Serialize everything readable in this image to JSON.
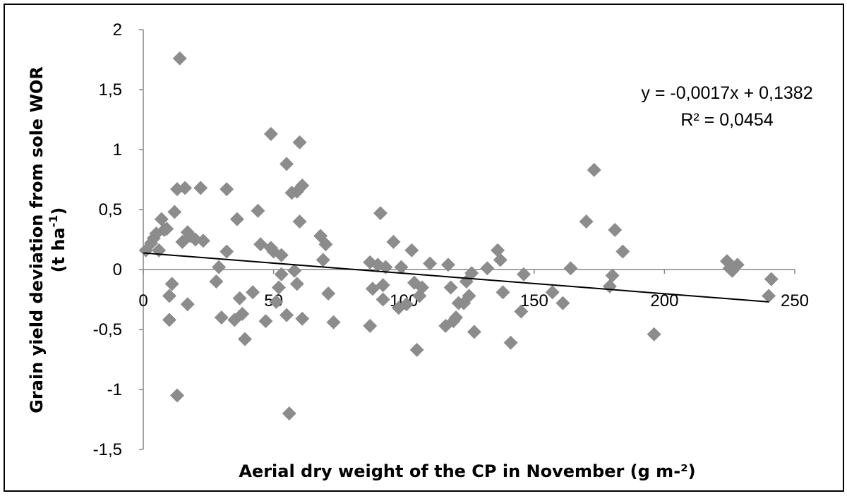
{
  "chart_data": {
    "type": "scatter",
    "title": "",
    "xlabel": "Aerial dry weight of the CP in November (g m-²)",
    "ylabel_line1": "Grain yield deviation from sole WOR",
    "ylabel_line2_main": "(t ha",
    "ylabel_line2_sup": "-1",
    "ylabel_line2_end": ")",
    "xlim": [
      0,
      250
    ],
    "ylim": [
      -1.5,
      2
    ],
    "x_ticks": [
      "0",
      "50",
      "100",
      "150",
      "200",
      "250"
    ],
    "y_ticks": [
      "-1,5",
      "-1",
      "-0,5",
      "0",
      "0,5",
      "1",
      "1,5",
      "2"
    ],
    "marker_color": "#8c8c8c",
    "trendline": {
      "slope": -0.0017,
      "intercept": 0.1382,
      "x_range": [
        0,
        240
      ],
      "equation_label": "y = -0,0017x + 0,1382",
      "r2_label": "R² = 0,0454",
      "color": "#000000"
    },
    "grid": false,
    "legend": "none",
    "points": [
      [
        1,
        0.16
      ],
      [
        3,
        0.22
      ],
      [
        4,
        0.26
      ],
      [
        5,
        0.3
      ],
      [
        6,
        0.16
      ],
      [
        7,
        0.42
      ],
      [
        8,
        0.33
      ],
      [
        9,
        0.34
      ],
      [
        10,
        -0.22
      ],
      [
        10,
        -0.42
      ],
      [
        11,
        -0.12
      ],
      [
        12,
        0.48
      ],
      [
        13,
        -1.05
      ],
      [
        13,
        0.67
      ],
      [
        14,
        1.76
      ],
      [
        15,
        0.23
      ],
      [
        16,
        0.68
      ],
      [
        17,
        0.31
      ],
      [
        17,
        -0.29
      ],
      [
        18,
        0.28
      ],
      [
        20,
        0.25
      ],
      [
        22,
        0.68
      ],
      [
        23,
        0.24
      ],
      [
        28,
        -0.1
      ],
      [
        29,
        0.02
      ],
      [
        30,
        -0.4
      ],
      [
        32,
        0.15
      ],
      [
        32,
        0.67
      ],
      [
        35,
        -0.42
      ],
      [
        36,
        0.42
      ],
      [
        37,
        -0.24
      ],
      [
        38,
        -0.37
      ],
      [
        39,
        -0.58
      ],
      [
        42,
        -0.19
      ],
      [
        44,
        0.49
      ],
      [
        45,
        0.21
      ],
      [
        47,
        -0.43
      ],
      [
        49,
        0.18
      ],
      [
        49,
        1.13
      ],
      [
        50,
        0.15
      ],
      [
        51,
        -0.27
      ],
      [
        52,
        -0.15
      ],
      [
        53,
        -0.04
      ],
      [
        53,
        0.12
      ],
      [
        55,
        0.88
      ],
      [
        55,
        -0.38
      ],
      [
        56,
        -1.2
      ],
      [
        57,
        0.64
      ],
      [
        58,
        -0.01
      ],
      [
        59,
        0.65
      ],
      [
        59,
        -0.12
      ],
      [
        60,
        1.06
      ],
      [
        60,
        0.4
      ],
      [
        61,
        0.7
      ],
      [
        61,
        -0.41
      ],
      [
        68,
        0.28
      ],
      [
        69,
        0.08
      ],
      [
        70,
        0.21
      ],
      [
        71,
        -0.2
      ],
      [
        73,
        -0.44
      ],
      [
        87,
        -0.47
      ],
      [
        87,
        0.06
      ],
      [
        88,
        -0.16
      ],
      [
        90,
        0.04
      ],
      [
        91,
        0.47
      ],
      [
        92,
        -0.25
      ],
      [
        92,
        -0.13
      ],
      [
        93,
        0.02
      ],
      [
        96,
        0.23
      ],
      [
        98,
        -0.32
      ],
      [
        99,
        0.02
      ],
      [
        101,
        -0.29
      ],
      [
        103,
        0.16
      ],
      [
        104,
        -0.11
      ],
      [
        105,
        -0.67
      ],
      [
        106,
        -0.22
      ],
      [
        107,
        -0.15
      ],
      [
        110,
        0.05
      ],
      [
        116,
        -0.47
      ],
      [
        117,
        0.04
      ],
      [
        118,
        -0.15
      ],
      [
        119,
        -0.43
      ],
      [
        120,
        -0.4
      ],
      [
        121,
        -0.28
      ],
      [
        123,
        -0.28
      ],
      [
        124,
        -0.1
      ],
      [
        125,
        -0.22
      ],
      [
        126,
        -0.03
      ],
      [
        127,
        -0.52
      ],
      [
        132,
        0.01
      ],
      [
        136,
        0.16
      ],
      [
        137,
        0.08
      ],
      [
        138,
        -0.19
      ],
      [
        141,
        -0.61
      ],
      [
        145,
        -0.35
      ],
      [
        146,
        -0.04
      ],
      [
        157,
        -0.19
      ],
      [
        161,
        -0.28
      ],
      [
        164,
        0.01
      ],
      [
        170,
        0.4
      ],
      [
        173,
        0.83
      ],
      [
        179,
        -0.14
      ],
      [
        180,
        -0.05
      ],
      [
        181,
        0.33
      ],
      [
        184,
        0.15
      ],
      [
        196,
        -0.54
      ],
      [
        224,
        0.07
      ],
      [
        225,
        0.01
      ],
      [
        226,
        -0.01
      ],
      [
        228,
        0.04
      ],
      [
        240,
        -0.22
      ],
      [
        241,
        -0.08
      ]
    ]
  }
}
